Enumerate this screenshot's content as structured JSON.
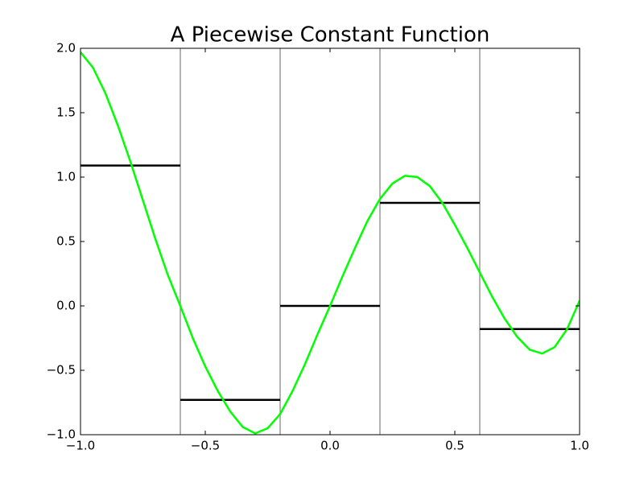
{
  "chart_data": {
    "type": "line",
    "title": "A Piecewise Constant Function",
    "x": [
      -1.0,
      -0.95,
      -0.9,
      -0.85,
      -0.8,
      -0.75,
      -0.7,
      -0.65,
      -0.6,
      -0.55,
      -0.5,
      -0.45,
      -0.4,
      -0.35,
      -0.3,
      -0.25,
      -0.2,
      -0.15,
      -0.1,
      -0.05,
      0.0,
      0.05,
      0.1,
      0.15,
      0.2,
      0.25,
      0.3,
      0.35,
      0.4,
      0.45,
      0.5,
      0.55,
      0.6,
      0.65,
      0.7,
      0.75,
      0.8,
      0.85,
      0.9,
      0.95,
      1.0
    ],
    "series": [
      {
        "color": "#00ff00",
        "values": [
          1.97,
          1.85,
          1.65,
          1.4,
          1.12,
          0.82,
          0.52,
          0.24,
          0.0,
          -0.25,
          -0.47,
          -0.66,
          -0.82,
          -0.94,
          -0.99,
          -0.95,
          -0.84,
          -0.66,
          -0.45,
          -0.22,
          0.0,
          0.23,
          0.45,
          0.66,
          0.83,
          0.95,
          1.01,
          1.0,
          0.93,
          0.8,
          0.63,
          0.45,
          0.26,
          0.07,
          -0.1,
          -0.24,
          -0.34,
          -0.37,
          -0.32,
          -0.18,
          0.04
        ]
      }
    ],
    "steps": {
      "color": "#000000",
      "edge_color": "#808080",
      "edges": [
        -1.0,
        -0.6,
        -0.2,
        0.2,
        0.6,
        1.0
      ],
      "values": [
        1.09,
        -0.73,
        0.0,
        0.8,
        -0.18
      ]
    },
    "xlim": [
      -1.0,
      1.0
    ],
    "ylim": [
      -1.0,
      2.0
    ],
    "xticks": [
      {
        "value": -1.0,
        "label": "−1.0"
      },
      {
        "value": -0.5,
        "label": "−0.5"
      },
      {
        "value": 0.0,
        "label": "0.0"
      },
      0.5,
      {
        "value": 1.0,
        "label": "1.0"
      }
    ],
    "yticks": [
      {
        "value": -1.0,
        "label": "−1.0"
      },
      {
        "value": -0.5,
        "label": "−0.5"
      },
      {
        "value": 0.0,
        "label": "0.0"
      },
      0.5,
      {
        "value": 1.0,
        "label": "1.0"
      },
      1.5,
      {
        "value": 2.0,
        "label": "2.0"
      }
    ],
    "grid": false
  }
}
